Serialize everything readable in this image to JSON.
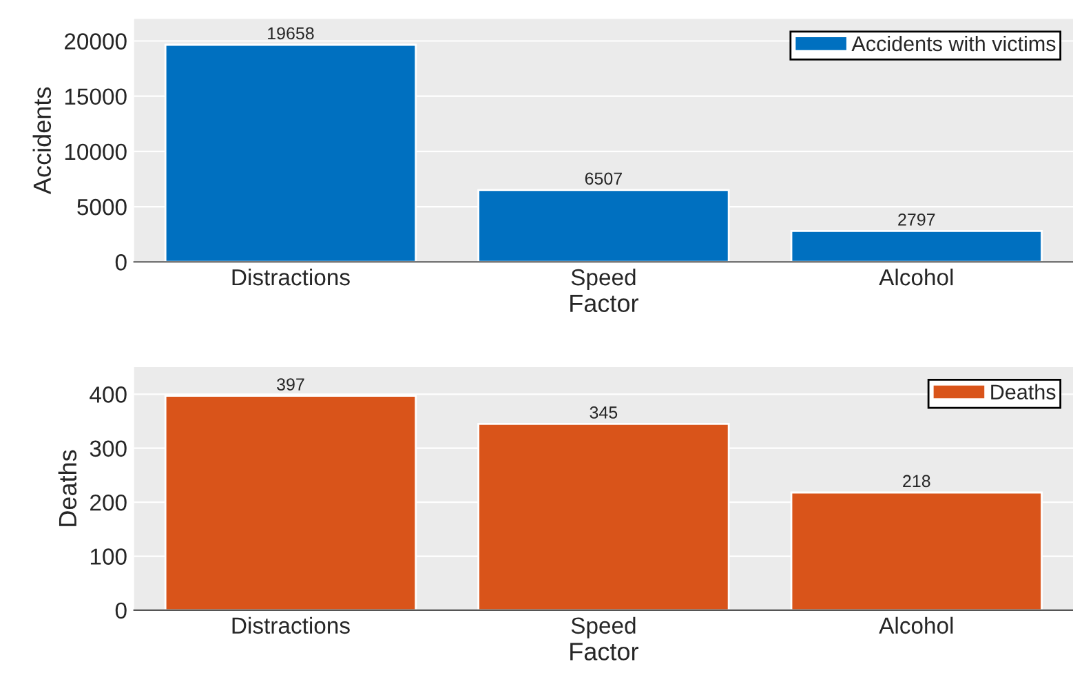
{
  "chart_data": [
    {
      "type": "bar",
      "xlabel": "Factor",
      "ylabel": "Accidents",
      "categories": [
        "Distractions",
        "Speed",
        "Alcohol"
      ],
      "series": [
        {
          "name": "Accidents with victims",
          "color": "#0070c0",
          "values": [
            19658,
            6507,
            2797
          ]
        }
      ],
      "ylim": [
        0,
        22000
      ],
      "yticks": [
        0,
        5000,
        10000,
        15000,
        20000
      ],
      "grid": "y",
      "legend": "top right",
      "data_labels": true
    },
    {
      "type": "bar",
      "xlabel": "Factor",
      "ylabel": "Deaths",
      "categories": [
        "Distractions",
        "Speed",
        "Alcohol"
      ],
      "series": [
        {
          "name": "Deaths",
          "color": "#d9541a",
          "values": [
            397,
            345,
            218
          ]
        }
      ],
      "ylim": [
        0,
        450
      ],
      "yticks": [
        0,
        100,
        200,
        300,
        400
      ],
      "grid": "y",
      "legend": "top right",
      "data_labels": true
    }
  ]
}
